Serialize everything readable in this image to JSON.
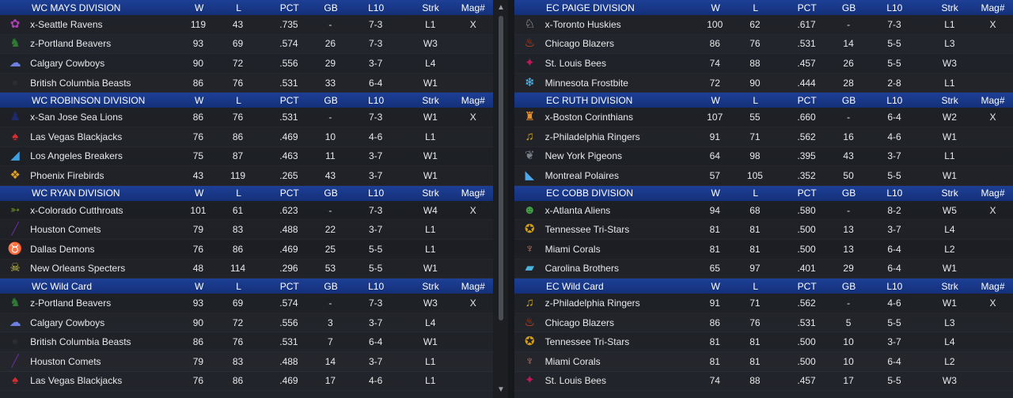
{
  "columns": {
    "w": "W",
    "l": "L",
    "pct": "PCT",
    "gb": "GB",
    "l10": "L10",
    "strk": "Strk",
    "mag": "Mag#"
  },
  "left": [
    {
      "title": "WC MAYS DIVISION",
      "teams": [
        {
          "name": "x-Seattle Ravens",
          "w": "119",
          "l": "43",
          "pct": ".735",
          "gb": "-",
          "l10": "7-3",
          "strk": "L1",
          "mag": "X",
          "icon": "raven-icon",
          "color": "#b03fb8",
          "glyph": "✿"
        },
        {
          "name": "z-Portland Beavers",
          "w": "93",
          "l": "69",
          "pct": ".574",
          "gb": "26",
          "l10": "7-3",
          "strk": "W3",
          "mag": "",
          "icon": "beaver-icon",
          "color": "#2e7d32",
          "glyph": "♞"
        },
        {
          "name": "Calgary Cowboys",
          "w": "90",
          "l": "72",
          "pct": ".556",
          "gb": "29",
          "l10": "3-7",
          "strk": "L4",
          "mag": "",
          "icon": "cowboy-hat-icon",
          "color": "#6f7fe0",
          "glyph": "☁"
        },
        {
          "name": "British Columbia Beasts",
          "w": "86",
          "l": "76",
          "pct": ".531",
          "gb": "33",
          "l10": "6-4",
          "strk": "W1",
          "mag": "",
          "icon": "beast-icon",
          "color": "#2a2c30",
          "glyph": "●"
        }
      ]
    },
    {
      "title": "WC ROBINSON DIVISION",
      "teams": [
        {
          "name": "x-San Jose Sea Lions",
          "w": "86",
          "l": "76",
          "pct": ".531",
          "gb": "-",
          "l10": "7-3",
          "strk": "W1",
          "mag": "X",
          "icon": "sea-lion-icon",
          "color": "#1d2a6e",
          "glyph": "♟"
        },
        {
          "name": "Las Vegas Blackjacks",
          "w": "76",
          "l": "86",
          "pct": ".469",
          "gb": "10",
          "l10": "4-6",
          "strk": "L1",
          "mag": "",
          "icon": "spade-icon",
          "color": "#d32f2f",
          "glyph": "♠"
        },
        {
          "name": "Los Angeles Breakers",
          "w": "75",
          "l": "87",
          "pct": ".463",
          "gb": "11",
          "l10": "3-7",
          "strk": "W1",
          "mag": "",
          "icon": "wave-icon",
          "color": "#3fa0e0",
          "glyph": "◢"
        },
        {
          "name": "Phoenix Firebirds",
          "w": "43",
          "l": "119",
          "pct": ".265",
          "gb": "43",
          "l10": "3-7",
          "strk": "W1",
          "mag": "",
          "icon": "firebird-icon",
          "color": "#e0a020",
          "glyph": "❖"
        }
      ]
    },
    {
      "title": "WC RYAN DIVISION",
      "teams": [
        {
          "name": "x-Colorado Cutthroats",
          "w": "101",
          "l": "61",
          "pct": ".623",
          "gb": "-",
          "l10": "7-3",
          "strk": "W4",
          "mag": "X",
          "icon": "fish-icon",
          "color": "#6b8e23",
          "glyph": "➳"
        },
        {
          "name": "Houston Comets",
          "w": "79",
          "l": "83",
          "pct": ".488",
          "gb": "22",
          "l10": "3-7",
          "strk": "L1",
          "mag": "",
          "icon": "comet-icon",
          "color": "#6a2a9a",
          "glyph": "╱"
        },
        {
          "name": "Dallas Demons",
          "w": "76",
          "l": "86",
          "pct": ".469",
          "gb": "25",
          "l10": "5-5",
          "strk": "L1",
          "mag": "",
          "icon": "demon-icon",
          "color": "#b3261e",
          "glyph": "♉"
        },
        {
          "name": "New Orleans Specters",
          "w": "48",
          "l": "114",
          "pct": ".296",
          "gb": "53",
          "l10": "5-5",
          "strk": "W1",
          "mag": "",
          "icon": "skull-icon",
          "color": "#c9c44a",
          "glyph": "☠"
        }
      ]
    },
    {
      "title": "WC  Wild Card",
      "teams": [
        {
          "name": "z-Portland Beavers",
          "w": "93",
          "l": "69",
          "pct": ".574",
          "gb": "-",
          "l10": "7-3",
          "strk": "W3",
          "mag": "X",
          "icon": "beaver-icon",
          "color": "#2e7d32",
          "glyph": "♞"
        },
        {
          "name": "Calgary Cowboys",
          "w": "90",
          "l": "72",
          "pct": ".556",
          "gb": "3",
          "l10": "3-7",
          "strk": "L4",
          "mag": "",
          "icon": "cowboy-hat-icon",
          "color": "#6f7fe0",
          "glyph": "☁"
        },
        {
          "name": "British Columbia Beasts",
          "w": "86",
          "l": "76",
          "pct": ".531",
          "gb": "7",
          "l10": "6-4",
          "strk": "W1",
          "mag": "",
          "icon": "beast-icon",
          "color": "#2a2c30",
          "glyph": "●"
        },
        {
          "name": "Houston Comets",
          "w": "79",
          "l": "83",
          "pct": ".488",
          "gb": "14",
          "l10": "3-7",
          "strk": "L1",
          "mag": "",
          "icon": "comet-icon",
          "color": "#6a2a9a",
          "glyph": "╱"
        },
        {
          "name": "Las Vegas Blackjacks",
          "w": "76",
          "l": "86",
          "pct": ".469",
          "gb": "17",
          "l10": "4-6",
          "strk": "L1",
          "mag": "",
          "icon": "spade-icon",
          "color": "#d32f2f",
          "glyph": "♠"
        }
      ]
    }
  ],
  "right": [
    {
      "title": "EC PAIGE DIVISION",
      "teams": [
        {
          "name": "x-Toronto Huskies",
          "w": "100",
          "l": "62",
          "pct": ".617",
          "gb": "-",
          "l10": "7-3",
          "strk": "L1",
          "mag": "X",
          "icon": "husky-icon",
          "color": "#c8c8cc",
          "glyph": "♘"
        },
        {
          "name": "Chicago Blazers",
          "w": "86",
          "l": "76",
          "pct": ".531",
          "gb": "14",
          "l10": "5-5",
          "strk": "L3",
          "mag": "",
          "icon": "flame-icon",
          "color": "#e64a19",
          "glyph": "♨"
        },
        {
          "name": "St. Louis Bees",
          "w": "74",
          "l": "88",
          "pct": ".457",
          "gb": "26",
          "l10": "5-5",
          "strk": "W3",
          "mag": "",
          "icon": "bee-icon",
          "color": "#c2185b",
          "glyph": "✦"
        },
        {
          "name": "Minnesota Frostbite",
          "w": "72",
          "l": "90",
          "pct": ".444",
          "gb": "28",
          "l10": "2-8",
          "strk": "L1",
          "mag": "",
          "icon": "snowflake-icon",
          "color": "#4fc3f7",
          "glyph": "❄"
        }
      ]
    },
    {
      "title": "EC RUTH DIVISION",
      "teams": [
        {
          "name": "x-Boston Corinthians",
          "w": "107",
          "l": "55",
          "pct": ".660",
          "gb": "-",
          "l10": "6-4",
          "strk": "W2",
          "mag": "X",
          "icon": "helmet-icon",
          "color": "#e6902a",
          "glyph": "♜"
        },
        {
          "name": "z-Philadelphia Ringers",
          "w": "91",
          "l": "71",
          "pct": ".562",
          "gb": "16",
          "l10": "4-6",
          "strk": "W1",
          "mag": "",
          "icon": "bell-icon",
          "color": "#c9a227",
          "glyph": "♫"
        },
        {
          "name": "New York Pigeons",
          "w": "64",
          "l": "98",
          "pct": ".395",
          "gb": "43",
          "l10": "3-7",
          "strk": "L1",
          "mag": "",
          "icon": "pigeon-icon",
          "color": "#7a7f8a",
          "glyph": "❦"
        },
        {
          "name": "Montreal Polaires",
          "w": "57",
          "l": "105",
          "pct": ".352",
          "gb": "50",
          "l10": "5-5",
          "strk": "W1",
          "mag": "",
          "icon": "polar-bear-icon",
          "color": "#4fa8e8",
          "glyph": "◣"
        }
      ]
    },
    {
      "title": "EC COBB DIVISION",
      "teams": [
        {
          "name": "x-Atlanta Aliens",
          "w": "94",
          "l": "68",
          "pct": ".580",
          "gb": "-",
          "l10": "8-2",
          "strk": "W5",
          "mag": "X",
          "icon": "alien-icon",
          "color": "#43a047",
          "glyph": "☻"
        },
        {
          "name": "Tennessee Tri-Stars",
          "w": "81",
          "l": "81",
          "pct": ".500",
          "gb": "13",
          "l10": "3-7",
          "strk": "L4",
          "mag": "",
          "icon": "tri-star-icon",
          "color": "#d4a017",
          "glyph": "✪"
        },
        {
          "name": "Miami Corals",
          "w": "81",
          "l": "81",
          "pct": ".500",
          "gb": "13",
          "l10": "6-4",
          "strk": "L2",
          "mag": "",
          "icon": "coral-icon",
          "color": "#e07050",
          "glyph": "♆"
        },
        {
          "name": "Carolina Brothers",
          "w": "65",
          "l": "97",
          "pct": ".401",
          "gb": "29",
          "l10": "6-4",
          "strk": "W1",
          "mag": "",
          "icon": "state-icon",
          "color": "#4fb3e0",
          "glyph": "▰"
        }
      ]
    },
    {
      "title": "EC  Wild Card",
      "teams": [
        {
          "name": "z-Philadelphia Ringers",
          "w": "91",
          "l": "71",
          "pct": ".562",
          "gb": "-",
          "l10": "4-6",
          "strk": "W1",
          "mag": "X",
          "icon": "bell-icon",
          "color": "#c9a227",
          "glyph": "♫"
        },
        {
          "name": "Chicago Blazers",
          "w": "86",
          "l": "76",
          "pct": ".531",
          "gb": "5",
          "l10": "5-5",
          "strk": "L3",
          "mag": "",
          "icon": "flame-icon",
          "color": "#e64a19",
          "glyph": "♨"
        },
        {
          "name": "Tennessee Tri-Stars",
          "w": "81",
          "l": "81",
          "pct": ".500",
          "gb": "10",
          "l10": "3-7",
          "strk": "L4",
          "mag": "",
          "icon": "tri-star-icon",
          "color": "#d4a017",
          "glyph": "✪"
        },
        {
          "name": "Miami Corals",
          "w": "81",
          "l": "81",
          "pct": ".500",
          "gb": "10",
          "l10": "6-4",
          "strk": "L2",
          "mag": "",
          "icon": "coral-icon",
          "color": "#e07050",
          "glyph": "♆"
        },
        {
          "name": "St. Louis Bees",
          "w": "74",
          "l": "88",
          "pct": ".457",
          "gb": "17",
          "l10": "5-5",
          "strk": "W3",
          "mag": "",
          "icon": "bee-icon",
          "color": "#c2185b",
          "glyph": "✦"
        }
      ]
    }
  ]
}
